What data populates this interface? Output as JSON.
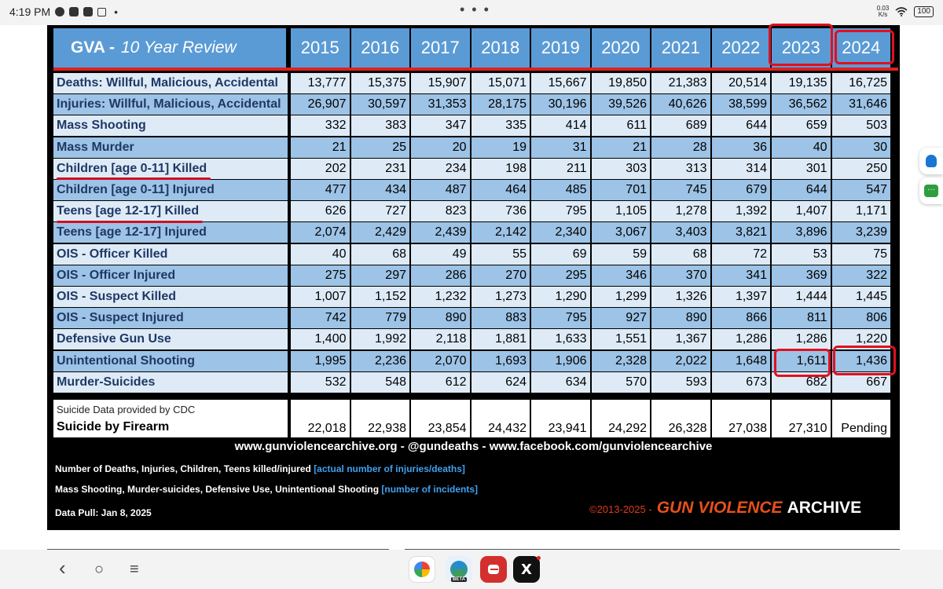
{
  "status_bar": {
    "time": "4:19 PM",
    "center_menu": "• • •",
    "net_speed_value": "0.03",
    "net_speed_unit": "K/s",
    "battery": "100"
  },
  "table": {
    "title_brand": "GVA -",
    "title_sub": "10 Year Review",
    "years": [
      "2015",
      "2016",
      "2017",
      "2018",
      "2019",
      "2020",
      "2021",
      "2022",
      "2023",
      "2024"
    ],
    "rows": [
      {
        "label": "Deaths:  Willful, Malicious, Accidental",
        "values": [
          "13,777",
          "15,375",
          "15,907",
          "15,071",
          "15,667",
          "19,850",
          "21,383",
          "20,514",
          "19,135",
          "16,725"
        ]
      },
      {
        "label": "Injuries: Willful, Malicious, Accidental",
        "values": [
          "26,907",
          "30,597",
          "31,353",
          "28,175",
          "30,196",
          "39,526",
          "40,626",
          "38,599",
          "36,562",
          "31,646"
        ]
      },
      {
        "label": "Mass Shooting",
        "values": [
          "332",
          "383",
          "347",
          "335",
          "414",
          "611",
          "689",
          "644",
          "659",
          "503"
        ]
      },
      {
        "label": "Mass Murder",
        "values": [
          "21",
          "25",
          "20",
          "19",
          "31",
          "21",
          "28",
          "36",
          "40",
          "30"
        ]
      },
      {
        "label": "Children [age 0-11] Killed",
        "values": [
          "202",
          "231",
          "234",
          "198",
          "211",
          "303",
          "313",
          "314",
          "301",
          "250"
        ]
      },
      {
        "label": "Children [age 0-11] Injured",
        "values": [
          "477",
          "434",
          "487",
          "464",
          "485",
          "701",
          "745",
          "679",
          "644",
          "547"
        ]
      },
      {
        "label": "Teens [age 12-17] Killed",
        "values": [
          "626",
          "727",
          "823",
          "736",
          "795",
          "1,105",
          "1,278",
          "1,392",
          "1,407",
          "1,171"
        ]
      },
      {
        "label": "Teens [age 12-17] Injured",
        "values": [
          "2,074",
          "2,429",
          "2,439",
          "2,142",
          "2,340",
          "3,067",
          "3,403",
          "3,821",
          "3,896",
          "3,239"
        ]
      },
      {
        "label": "OIS - Officer Killed",
        "values": [
          "40",
          "68",
          "49",
          "55",
          "69",
          "59",
          "68",
          "72",
          "53",
          "75"
        ]
      },
      {
        "label": "OIS - Officer Injured",
        "values": [
          "275",
          "297",
          "286",
          "270",
          "295",
          "346",
          "370",
          "341",
          "369",
          "322"
        ]
      },
      {
        "label": "OIS - Suspect Killed",
        "values": [
          "1,007",
          "1,152",
          "1,232",
          "1,273",
          "1,290",
          "1,299",
          "1,326",
          "1,397",
          "1,444",
          "1,445"
        ]
      },
      {
        "label": "OIS - Suspect Injured",
        "values": [
          "742",
          "779",
          "890",
          "883",
          "795",
          "927",
          "890",
          "866",
          "811",
          "806"
        ]
      },
      {
        "label": "Defensive Gun Use",
        "values": [
          "1,400",
          "1,992",
          "2,118",
          "1,881",
          "1,633",
          "1,551",
          "1,367",
          "1,286",
          "1,286",
          "1,220"
        ]
      },
      {
        "label": "Unintentional Shooting",
        "values": [
          "1,995",
          "2,236",
          "2,070",
          "1,693",
          "1,906",
          "2,328",
          "2,022",
          "1,648",
          "1,611",
          "1,436"
        ]
      },
      {
        "label": "Murder-Suicides",
        "values": [
          "532",
          "548",
          "612",
          "624",
          "634",
          "570",
          "593",
          "673",
          "682",
          "667"
        ]
      }
    ],
    "suicide_source": "Suicide Data provided by CDC",
    "suicide_label": "Suicide by Firearm",
    "suicide_values": [
      "22,018",
      "22,938",
      "23,854",
      "24,432",
      "23,941",
      "24,292",
      "26,328",
      "27,038",
      "27,310",
      "Pending"
    ]
  },
  "footer": {
    "links": "www.gunviolencearchive.org  -  @gundeaths  -  www.facebook.com/gunviolencearchive",
    "note1_text": "Number of Deaths, Injuries, Children, Teens  killed/injured ",
    "note1_highlight": "[actual number of injuries/deaths]",
    "note2_text": "Mass Shooting, Murder-suicides, Defensive Use, Unintentional Shooting ",
    "note2_highlight": "[number of incidents]",
    "data_pull": "Data Pull: Jan 8, 2025",
    "copyright_years": "©2013-2025 -",
    "brand_gun": "GUN VIOLENCE",
    "brand_archive": "ARCHIVE"
  },
  "nav": {
    "back": "‹",
    "home": "○",
    "menu": "≡",
    "x_app": "X",
    "edge_badge": "BETA"
  }
}
